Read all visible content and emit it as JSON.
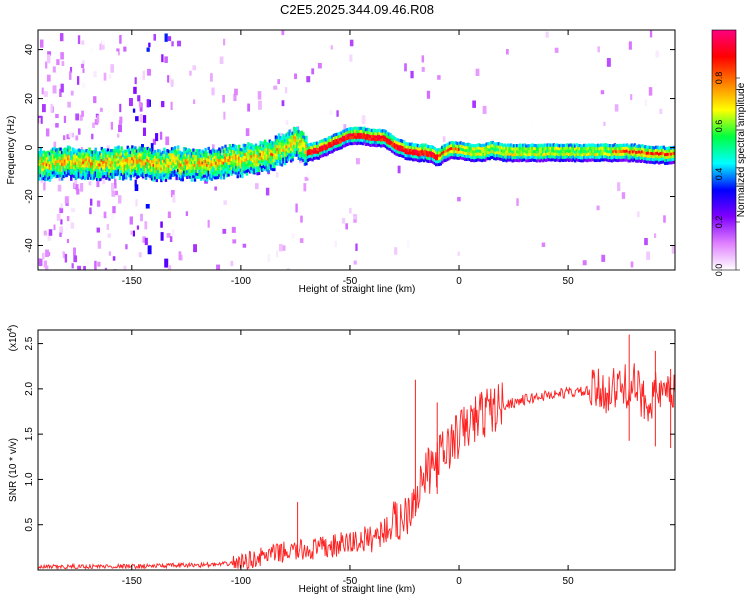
{
  "title": "C2E5.2025.344.09.46.R08",
  "chart_data": [
    {
      "type": "heatmap",
      "title": "C2E5.2025.344.09.46.R08",
      "xlabel": "Height of straight line (km)",
      "ylabel": "Frequency (Hz)",
      "xlim": [
        -193,
        99
      ],
      "ylim": [
        -50,
        48
      ],
      "x_ticks": [
        -150,
        -100,
        -50,
        0,
        50
      ],
      "y_ticks": [
        -40,
        -20,
        0,
        20,
        40
      ],
      "colorbar": {
        "label": "Normalized spectral amplitude",
        "range": [
          0,
          1
        ],
        "ticks": [
          "0.0",
          "0.2",
          "0.4",
          "0.6",
          "0.8"
        ],
        "colors": [
          "#ffffff",
          "#e080ff",
          "#8000ff",
          "#0000ff",
          "#00ffff",
          "#00ff40",
          "#ffff00",
          "#ff8000",
          "#ff0000",
          "#ff0080"
        ]
      },
      "ridge": {
        "x": [
          -193,
          -180,
          -170,
          -160,
          -150,
          -140,
          -130,
          -120,
          -110,
          -100,
          -90,
          -80,
          -75,
          -70,
          -65,
          -60,
          -55,
          -50,
          -45,
          -40,
          -35,
          -30,
          -25,
          -20,
          -15,
          -10,
          -5,
          0,
          5,
          10,
          15,
          20,
          30,
          40,
          50,
          60,
          70,
          80,
          90,
          99
        ],
        "y": [
          -6,
          -5,
          -6,
          -5,
          -5,
          -6,
          -5,
          -6,
          -5,
          -4,
          -3,
          1,
          3,
          -1,
          0,
          2,
          4,
          6,
          6,
          5,
          5,
          2,
          0,
          -1,
          -1,
          -3,
          0,
          0,
          -1,
          -1,
          0,
          -1,
          -1,
          -1,
          -1,
          -1,
          -1,
          -1,
          -2,
          -2
        ]
      }
    },
    {
      "type": "line",
      "xlabel": "Height of straight line (km)",
      "ylabel": "SNR (10 * v/v)",
      "y_multiplier": "(x10",
      "y_multiplier_exp": "4",
      "y_multiplier_close": ")",
      "xlim": [
        -193,
        99
      ],
      "ylim": [
        0,
        2.65
      ],
      "x_ticks": [
        -150,
        -100,
        -50,
        0,
        50
      ],
      "y_ticks": [
        "0.5",
        "1.0",
        "1.5",
        "2.0",
        "2.5"
      ],
      "series": [
        {
          "color": "#ff2020",
          "x": [
            -193,
            -170,
            -150,
            -130,
            -110,
            -100,
            -90,
            -80,
            -70,
            -60,
            -50,
            -40,
            -30,
            -25,
            -20,
            -15,
            -10,
            -5,
            0,
            10,
            20,
            30,
            40,
            50,
            60,
            70,
            75,
            80,
            85,
            90,
            95,
            99
          ],
          "y": [
            0.03,
            0.04,
            0.04,
            0.05,
            0.06,
            0.08,
            0.15,
            0.2,
            0.22,
            0.25,
            0.3,
            0.35,
            0.5,
            0.6,
            0.85,
            1.05,
            1.2,
            1.35,
            1.5,
            1.72,
            1.82,
            1.88,
            1.93,
            1.96,
            1.97,
            1.98,
            2.02,
            2.05,
            1.85,
            1.95,
            1.9,
            1.95
          ]
        }
      ],
      "spikes": [
        {
          "x": -74,
          "y": 0.75
        },
        {
          "x": -20,
          "y": 2.1
        },
        {
          "x": -10,
          "y": 1.85
        },
        {
          "x": 78,
          "y": 2.6
        },
        {
          "x": 90,
          "y": 2.42
        },
        {
          "x": 97,
          "y": 2.22
        }
      ]
    }
  ]
}
